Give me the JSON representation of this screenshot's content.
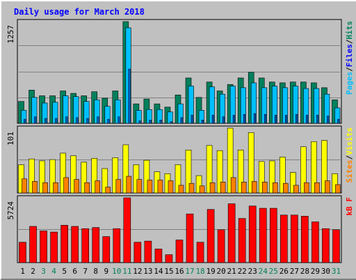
{
  "title": "Daily usage for March 2018",
  "colors": {
    "background": "#C0C0C0",
    "title": "#0000FF",
    "hits": "#00805C",
    "files": "#00C0FF",
    "pages": "#0060D0",
    "visits": "#FFFF00",
    "sites": "#FF8000",
    "kbytes": "#FF0000",
    "weekend_day": "#00805C",
    "weekday": "#000000"
  },
  "legends": {
    "top": [
      {
        "text": "Pages",
        "color": "#00C0FF"
      },
      {
        "text": "/",
        "color": "#000000"
      },
      {
        "text": "Files",
        "color": "#0000FF"
      },
      {
        "text": "/",
        "color": "#000000"
      },
      {
        "text": "Hits",
        "color": "#00805C"
      }
    ],
    "middle": [
      {
        "text": "Sites",
        "color": "#FF8000"
      },
      {
        "text": "/",
        "color": "#000000"
      },
      {
        "text": "Visits",
        "color": "#FFFF00"
      }
    ],
    "bottom": [
      {
        "text": "kB F",
        "color": "#FF0000"
      }
    ]
  },
  "chart_data": [
    {
      "type": "bar",
      "panel": "hits-files-pages",
      "y_max_label": "1257",
      "ylim": [
        0,
        1257
      ],
      "categories": [
        "1",
        "2",
        "3",
        "4",
        "5",
        "6",
        "7",
        "8",
        "9",
        "10",
        "11",
        "12",
        "13",
        "14",
        "15",
        "16",
        "17",
        "18",
        "19",
        "20",
        "21",
        "22",
        "23",
        "24",
        "25",
        "26",
        "27",
        "28",
        "29",
        "30",
        "31"
      ],
      "weekend_categories": [
        "3",
        "4",
        "10",
        "11",
        "17",
        "18",
        "24",
        "25",
        "31"
      ],
      "series": [
        {
          "name": "Hits",
          "values": [
            270,
            410,
            340,
            340,
            400,
            370,
            340,
            390,
            310,
            400,
            1257,
            240,
            300,
            240,
            200,
            350,
            560,
            320,
            510,
            400,
            480,
            560,
            630,
            560,
            510,
            500,
            510,
            510,
            500,
            440,
            290
          ]
        },
        {
          "name": "Files",
          "values": [
            160,
            320,
            250,
            260,
            340,
            330,
            270,
            290,
            210,
            290,
            1180,
            160,
            170,
            170,
            140,
            240,
            460,
            160,
            450,
            360,
            460,
            440,
            500,
            440,
            460,
            440,
            460,
            430,
            430,
            360,
            190
          ]
        },
        {
          "name": "Pages",
          "values": [
            50,
            80,
            60,
            60,
            80,
            70,
            60,
            80,
            50,
            80,
            670,
            30,
            40,
            40,
            20,
            70,
            100,
            40,
            100,
            80,
            100,
            110,
            120,
            110,
            100,
            100,
            110,
            100,
            100,
            90,
            50
          ]
        }
      ]
    },
    {
      "type": "bar",
      "panel": "visits-sites",
      "y_max_label": "101",
      "ylim": [
        0,
        101
      ],
      "categories": [
        "1",
        "2",
        "3",
        "4",
        "5",
        "6",
        "7",
        "8",
        "9",
        "10",
        "11",
        "12",
        "13",
        "14",
        "15",
        "16",
        "17",
        "18",
        "19",
        "20",
        "21",
        "22",
        "23",
        "24",
        "25",
        "26",
        "27",
        "28",
        "29",
        "30",
        "31"
      ],
      "series": [
        {
          "name": "Visits",
          "values": [
            44,
            53,
            50,
            52,
            62,
            58,
            48,
            54,
            38,
            55,
            75,
            44,
            51,
            33,
            30,
            44,
            67,
            27,
            74,
            66,
            101,
            67,
            94,
            49,
            50,
            56,
            32,
            72,
            80,
            82,
            30
          ]
        },
        {
          "name": "Sites",
          "values": [
            22,
            18,
            16,
            16,
            24,
            21,
            16,
            19,
            9,
            21,
            26,
            21,
            20,
            20,
            19,
            12,
            15,
            11,
            16,
            17,
            24,
            17,
            18,
            17,
            16,
            15,
            12,
            16,
            16,
            19,
            13
          ]
        }
      ]
    },
    {
      "type": "bar",
      "panel": "kbytes",
      "y_max_label": "5724",
      "ylim": [
        0,
        5724
      ],
      "categories": [
        "1",
        "2",
        "3",
        "4",
        "5",
        "6",
        "7",
        "8",
        "9",
        "10",
        "11",
        "12",
        "13",
        "14",
        "15",
        "16",
        "17",
        "18",
        "19",
        "20",
        "21",
        "22",
        "23",
        "24",
        "25",
        "26",
        "27",
        "28",
        "29",
        "30",
        "31"
      ],
      "series": [
        {
          "name": "kB F",
          "values": [
            1800,
            3200,
            2800,
            2700,
            3300,
            3200,
            3000,
            3100,
            2300,
            3000,
            5724,
            1800,
            1900,
            1200,
            700,
            2000,
            4300,
            1800,
            4700,
            2900,
            5200,
            3900,
            5000,
            4800,
            4800,
            4200,
            4200,
            4100,
            3600,
            3000,
            2900
          ]
        }
      ]
    }
  ]
}
